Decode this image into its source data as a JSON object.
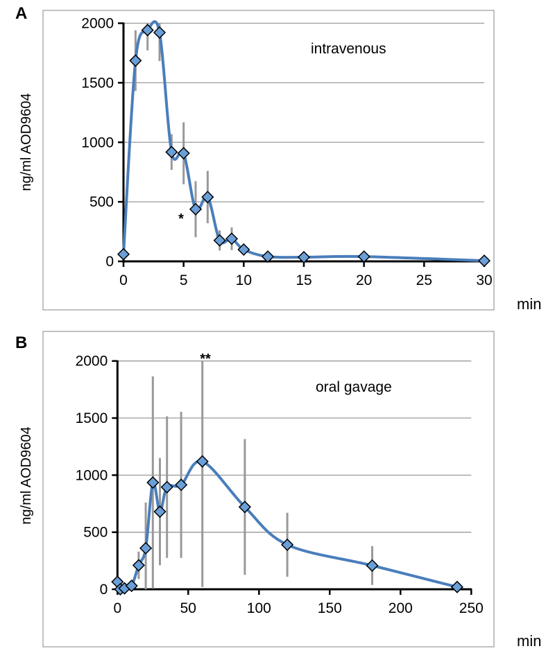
{
  "chart_data": [
    {
      "type": "line",
      "panel_label": "A",
      "annotation": "intravenous",
      "marker_note": "*",
      "xlabel": "min",
      "ylabel": "ng/ml AOD9604",
      "xlim": [
        0,
        30
      ],
      "ylim": [
        0,
        2000
      ],
      "xticks": [
        0,
        5,
        10,
        15,
        20,
        25,
        30
      ],
      "yticks": [
        0,
        500,
        1000,
        1500,
        2000
      ],
      "grid": true,
      "smooth": true,
      "line_color": "#4a7ebb",
      "marker_color": "#6a9fd8",
      "errorbar_color": "#999999",
      "x": [
        0,
        1,
        2,
        3,
        4,
        5,
        6,
        7,
        8,
        9,
        10,
        12,
        15,
        20,
        30
      ],
      "y": [
        60,
        1686,
        1942,
        1922,
        918,
        908,
        438,
        540,
        176,
        190,
        99,
        40,
        35,
        40,
        5
      ],
      "error": [
        0,
        255,
        170,
        240,
        150,
        260,
        235,
        220,
        85,
        95,
        0,
        0,
        0,
        0,
        0
      ]
    },
    {
      "type": "line",
      "panel_label": "B",
      "annotation": "oral gavage",
      "marker_note": "**",
      "xlabel": "min",
      "ylabel": "ng/ml AOD9604",
      "xlim": [
        0,
        250
      ],
      "ylim": [
        0,
        2000
      ],
      "xticks": [
        0,
        50,
        100,
        150,
        200,
        250
      ],
      "yticks": [
        0,
        500,
        1000,
        1500,
        2000
      ],
      "grid": true,
      "smooth": true,
      "line_color": "#4a7ebb",
      "marker_color": "#6a9fd8",
      "errorbar_color": "#999999",
      "x": [
        0,
        2,
        5,
        10,
        15,
        20,
        25,
        30,
        35,
        45,
        60,
        90,
        120,
        180,
        240
      ],
      "y": [
        65,
        0,
        8,
        30,
        210,
        360,
        935,
        680,
        895,
        915,
        1120,
        721,
        390,
        208,
        20
      ],
      "error": [
        0,
        0,
        0,
        0,
        120,
        400,
        930,
        470,
        620,
        640,
        1100,
        595,
        280,
        170,
        0
      ]
    }
  ]
}
